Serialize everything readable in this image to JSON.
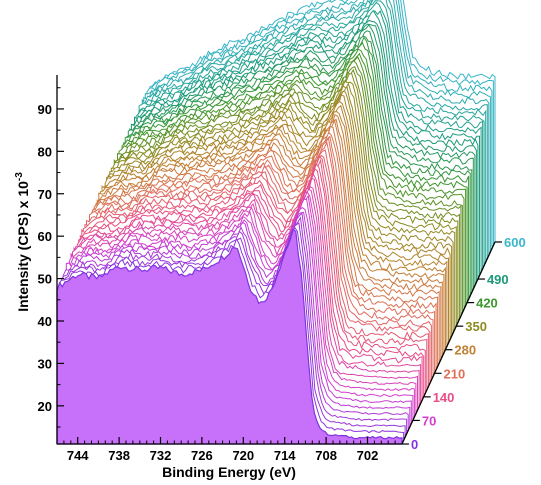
{
  "chart_data": {
    "type": "line",
    "title": "",
    "xlabel": "Binding Energy (eV)",
    "ylabel": "Intensity (CPS) x 10",
    "ylabel_exponent": "-3",
    "x_ticks": [
      "744",
      "738",
      "732",
      "726",
      "720",
      "714",
      "708",
      "702"
    ],
    "y_ticks": [
      "20",
      "30",
      "40",
      "50",
      "60",
      "70",
      "80",
      "90"
    ],
    "z_ticks": [
      "0",
      "70",
      "140",
      "210",
      "280",
      "350",
      "420",
      "490",
      "600"
    ],
    "xlim": [
      747,
      697
    ],
    "ylim": [
      11,
      98
    ],
    "zlim": [
      0,
      600
    ],
    "x_reversed": true,
    "grid": false,
    "legend": "none",
    "series_count": 61,
    "series_depth_values": [
      0,
      10,
      20,
      30,
      40,
      50,
      60,
      70,
      80,
      90,
      100,
      110,
      120,
      130,
      140,
      150,
      160,
      170,
      180,
      190,
      200,
      210,
      220,
      230,
      240,
      250,
      260,
      270,
      280,
      290,
      300,
      310,
      320,
      330,
      340,
      350,
      360,
      370,
      380,
      390,
      400,
      410,
      420,
      430,
      440,
      450,
      460,
      470,
      480,
      490,
      500,
      510,
      520,
      530,
      540,
      550,
      560,
      570,
      580,
      590,
      600
    ],
    "front_series": {
      "depth": 0,
      "x": [
        747,
        744,
        741,
        738,
        735,
        732,
        729,
        726,
        723,
        721,
        719,
        717.5,
        716,
        714,
        712.5,
        711.5,
        710.8,
        710,
        709,
        708,
        707,
        706,
        704,
        702,
        700,
        697
      ],
      "y": [
        48,
        51,
        50,
        53,
        52,
        52.5,
        51,
        52,
        55,
        58,
        48,
        44,
        47,
        56,
        62,
        50,
        35,
        20,
        15,
        13.5,
        13,
        13,
        12.5,
        12.5,
        12.5,
        12.5
      ]
    },
    "back_series": {
      "depth": 600,
      "x": [
        747,
        744,
        741,
        738,
        735,
        732,
        729,
        726,
        723,
        721,
        719,
        717.5,
        716,
        714,
        712.5,
        711.5,
        710.8,
        710,
        709,
        708,
        707,
        706,
        704,
        702,
        700,
        697
      ],
      "y": [
        48,
        51,
        52.5,
        56,
        58,
        60,
        63,
        65,
        67,
        68,
        69,
        69.5,
        71,
        73,
        75,
        76,
        74,
        65,
        55,
        53,
        52,
        51,
        50.5,
        50,
        50,
        50
      ]
    },
    "colors": {
      "depth_0": "#8033e0",
      "depth_70": "#d23fd0",
      "depth_140": "#e84c86",
      "depth_210": "#e0705a",
      "depth_280": "#c08030",
      "depth_350": "#8c8c20",
      "depth_420": "#3c962c",
      "depth_490": "#1a9a78",
      "depth_600": "#3ab6cc",
      "front_fill": "#c770fa"
    }
  }
}
